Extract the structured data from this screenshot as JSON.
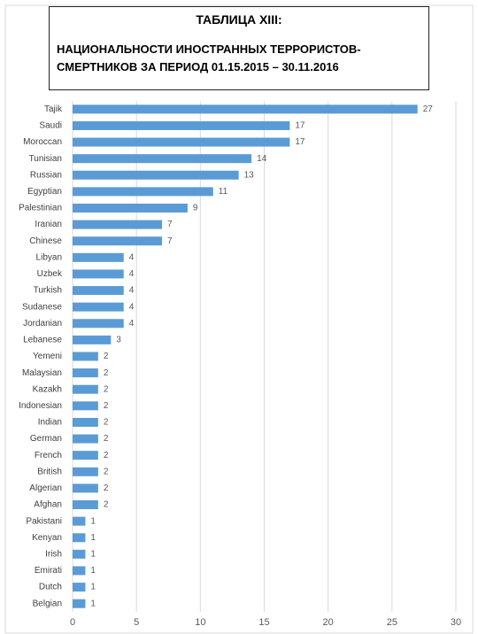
{
  "chart_data": {
    "type": "hbar",
    "title": "ТАБЛИЦА XIII:",
    "subtitle": "НАЦИОНАЛЬНОСТИ ИНОСТРАННЫХ ТЕРРОРИСТОВ-СМЕРТНИКОВ ЗА ПЕРИОД 01.15.2015 – 30.11.2016",
    "categories": [
      "Tajik",
      "Saudi",
      "Moroccan",
      "Tunisian",
      "Russian",
      "Egyptian",
      "Palestinian",
      "Iranian",
      "Chinese",
      "Libyan",
      "Uzbek",
      "Turkish",
      "Sudanese",
      "Jordanian",
      "Lebanese",
      "Yemeni",
      "Malaysian",
      "Kazakh",
      "Indonesian",
      "Indian",
      "German",
      "French",
      "British",
      "Algerian",
      "Afghan",
      "Pakistani",
      "Kenyan",
      "Irish",
      "Emirati",
      "Dutch",
      "Belgian"
    ],
    "values": [
      27,
      17,
      17,
      14,
      13,
      11,
      9,
      7,
      7,
      4,
      4,
      4,
      4,
      4,
      3,
      2,
      2,
      2,
      2,
      2,
      2,
      2,
      2,
      2,
      2,
      1,
      1,
      1,
      1,
      1,
      1
    ],
    "color": "#5b9bd5",
    "xlim": [
      0,
      30
    ],
    "xticks": [
      0,
      5,
      10,
      15,
      20,
      25,
      30
    ],
    "grid": true
  }
}
